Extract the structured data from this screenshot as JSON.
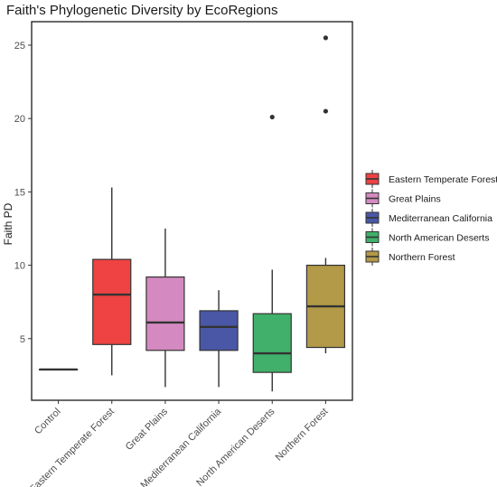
{
  "chart_data": {
    "type": "boxplot",
    "title": "Faith's Phylogenetic Diversity by EcoRegions",
    "xlabel": "",
    "ylabel": "Faith PD",
    "ylim": [
      0.8,
      26.6
    ],
    "yticks": [
      5,
      10,
      15,
      20,
      25
    ],
    "grid": false,
    "legend_position": "right",
    "categories": [
      "Control",
      "Eastern Temperate Forest",
      "Great Plains",
      "Mediterranean California",
      "North American Deserts",
      "Northern Forest"
    ],
    "boxes": [
      {
        "category": "Control",
        "min": 2.9,
        "q1": 2.9,
        "median": 2.9,
        "q3": 2.9,
        "max": 2.9,
        "outliers": [],
        "color": "#a0a0a0"
      },
      {
        "category": "Eastern Temperate Forest",
        "min": 2.5,
        "q1": 4.6,
        "median": 8.0,
        "q3": 10.4,
        "max": 15.3,
        "outliers": [],
        "color": "#ef4343"
      },
      {
        "category": "Great Plains",
        "min": 1.7,
        "q1": 4.2,
        "median": 6.1,
        "q3": 9.2,
        "max": 12.5,
        "outliers": [],
        "color": "#d48ac0"
      },
      {
        "category": "Mediterranean California",
        "min": 1.7,
        "q1": 4.2,
        "median": 5.8,
        "q3": 6.9,
        "max": 8.3,
        "outliers": [],
        "color": "#4a57a6"
      },
      {
        "category": "North American Deserts",
        "min": 1.4,
        "q1": 2.7,
        "median": 4.0,
        "q3": 6.7,
        "max": 9.7,
        "outliers": [
          20.1
        ],
        "color": "#40b06a"
      },
      {
        "category": "Northern Forest",
        "min": 4.0,
        "q1": 4.4,
        "median": 7.2,
        "q3": 10.0,
        "max": 10.5,
        "outliers": [
          20.5,
          25.5
        ],
        "color": "#b39a48"
      }
    ],
    "legend": [
      {
        "label": "Eastern Temperate Forest",
        "color": "#ef4343"
      },
      {
        "label": "Great Plains",
        "color": "#d48ac0"
      },
      {
        "label": "Mediterranean California",
        "color": "#4a57a6"
      },
      {
        "label": "North American Deserts",
        "color": "#40b06a"
      },
      {
        "label": "Northern Forest",
        "color": "#b39a48"
      }
    ]
  }
}
